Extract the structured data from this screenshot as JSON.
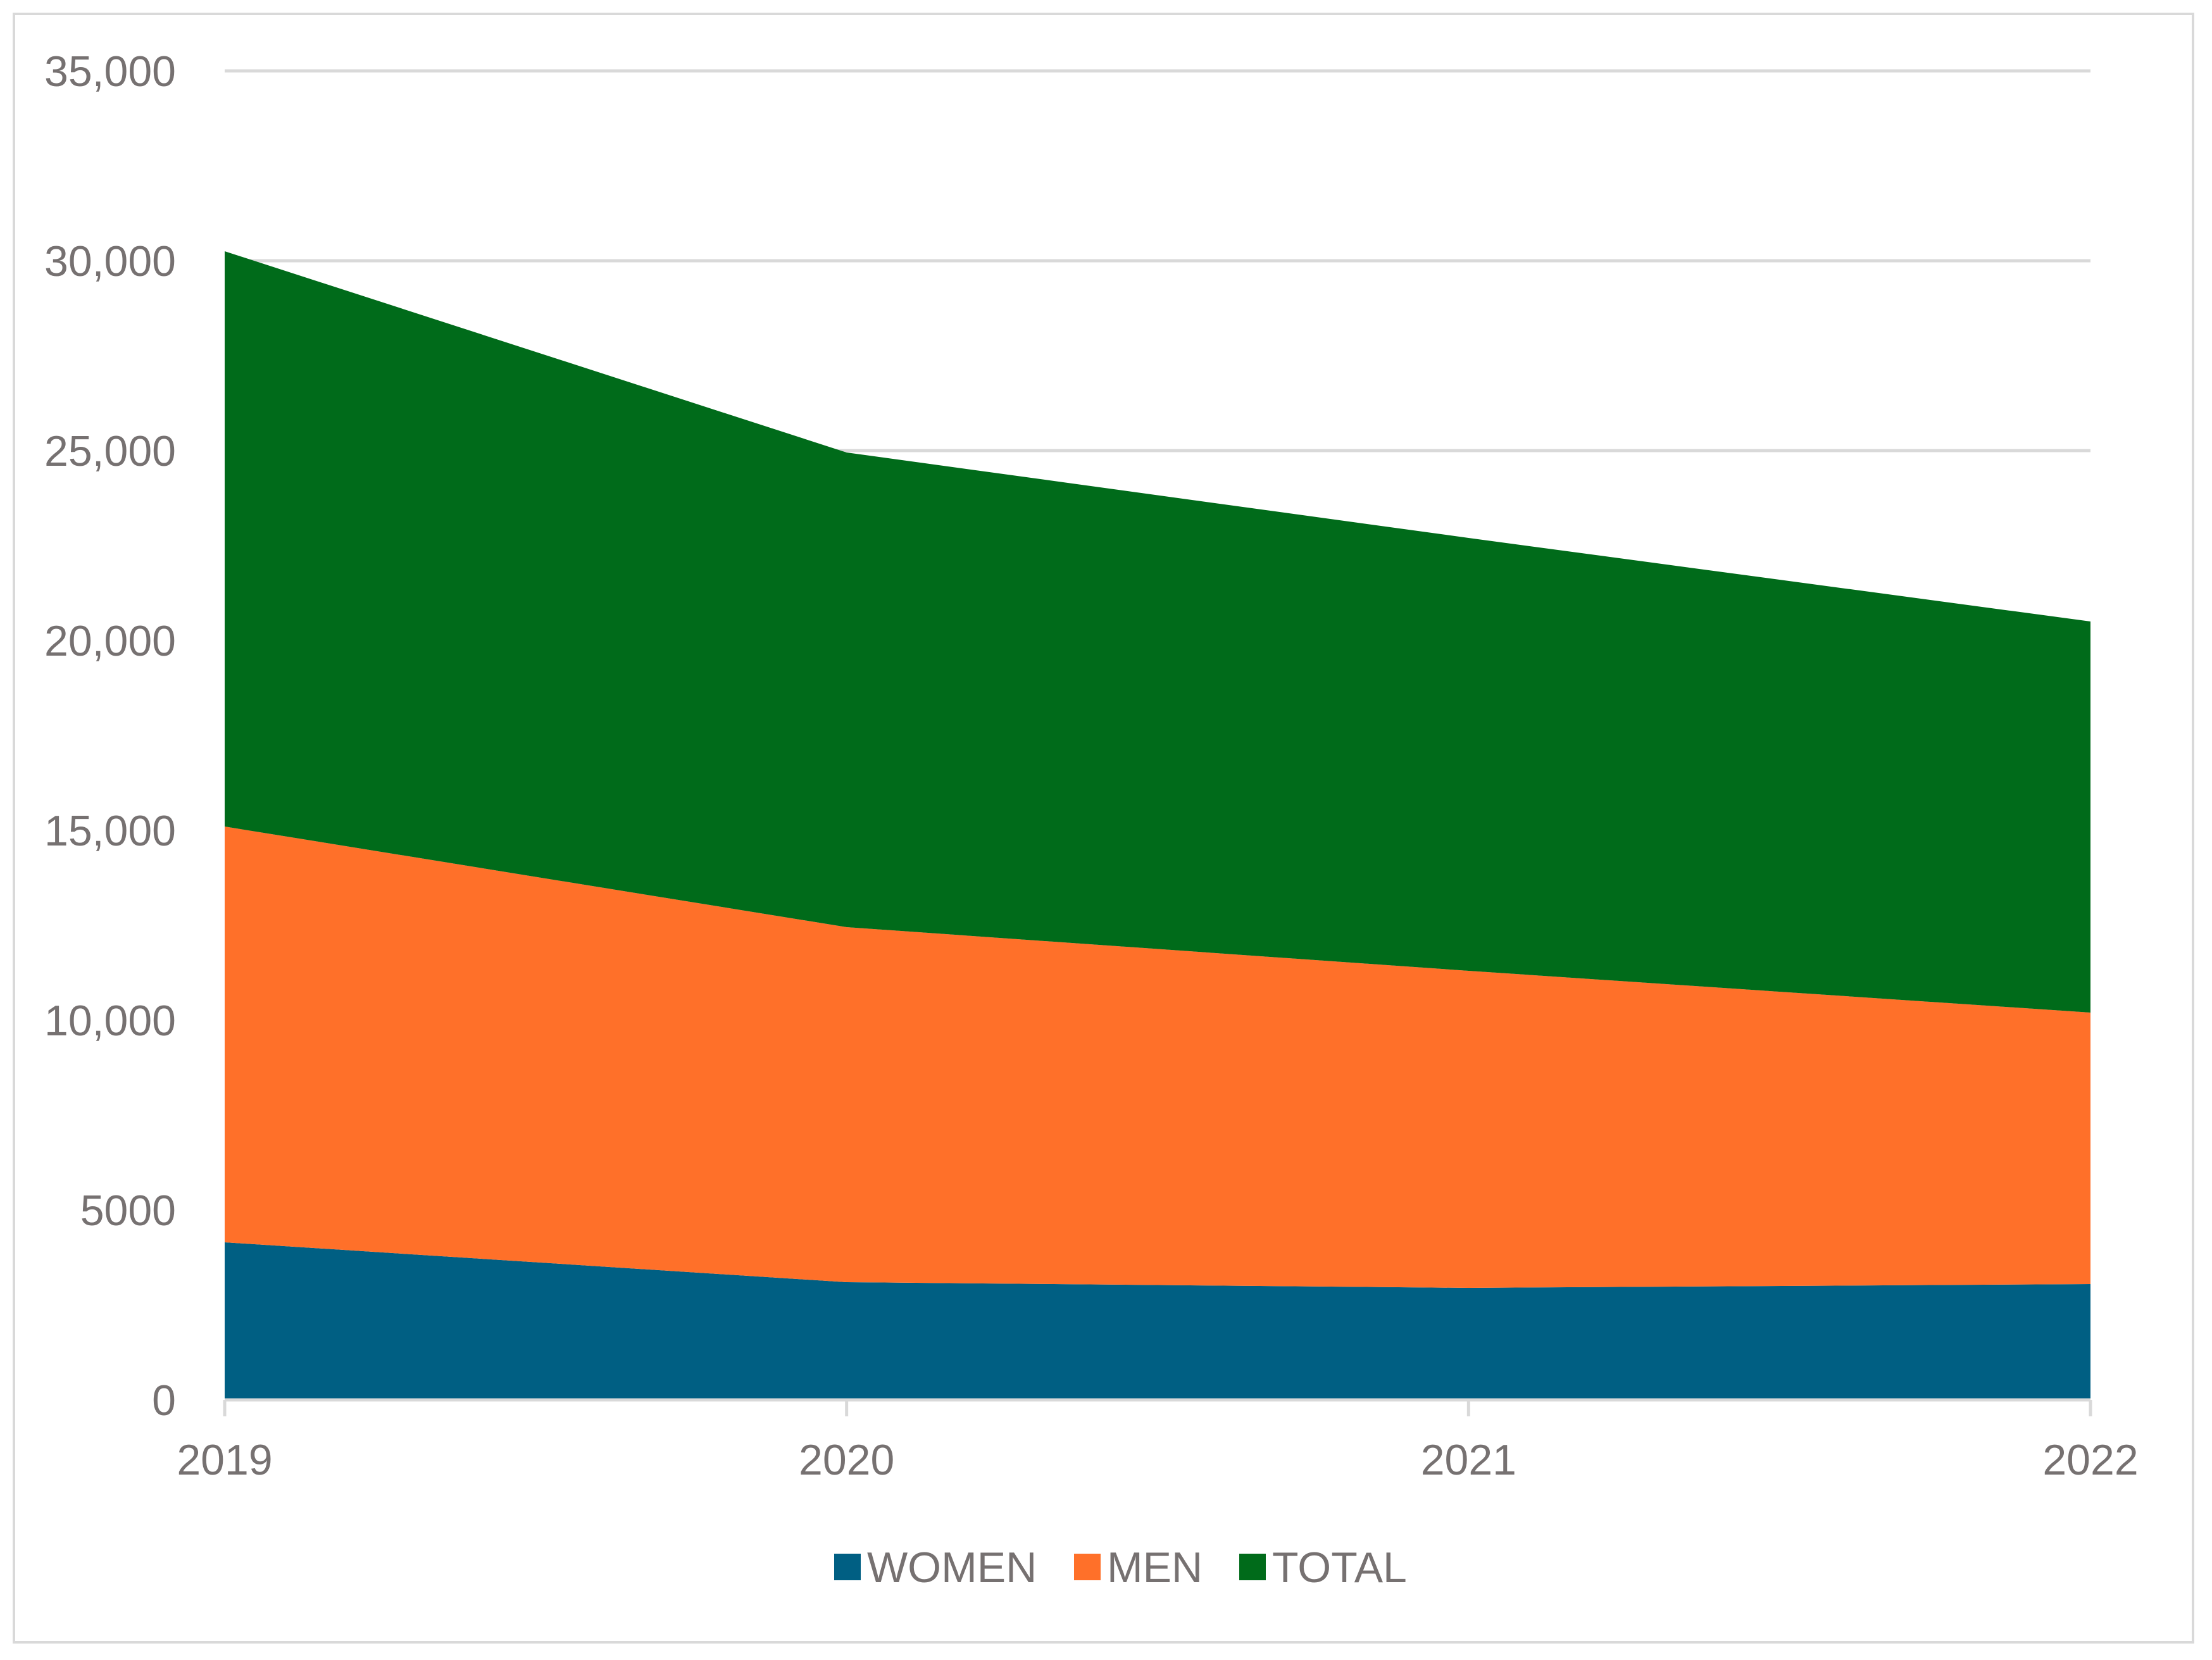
{
  "chart_data": {
    "type": "area",
    "stacked": true,
    "title": "",
    "xlabel": "",
    "ylabel": "",
    "categories": [
      "2019",
      "2020",
      "2021",
      "2022"
    ],
    "series": [
      {
        "name": "WOMEN",
        "values": [
          4150,
          3100,
          2950,
          3050
        ],
        "color": "#005f83"
      },
      {
        "name": "MEN",
        "values": [
          10950,
          9350,
          8350,
          7150
        ],
        "color": "#ff7029"
      },
      {
        "name": "TOTAL",
        "values": [
          15150,
          12500,
          11400,
          10300
        ],
        "color": "#006b1a"
      }
    ],
    "ylim": [
      0,
      35000
    ],
    "yticks": [
      {
        "value": 0,
        "label": "0"
      },
      {
        "value": 5000,
        "label": "5000"
      },
      {
        "value": 10000,
        "label": "10,000"
      },
      {
        "value": 15000,
        "label": "15,000"
      },
      {
        "value": 20000,
        "label": "20,000"
      },
      {
        "value": 25000,
        "label": "25,000"
      },
      {
        "value": 30000,
        "label": "30,000"
      },
      {
        "value": 35000,
        "label": "35,000"
      }
    ],
    "grid": true,
    "legend_position": "bottom-center"
  }
}
